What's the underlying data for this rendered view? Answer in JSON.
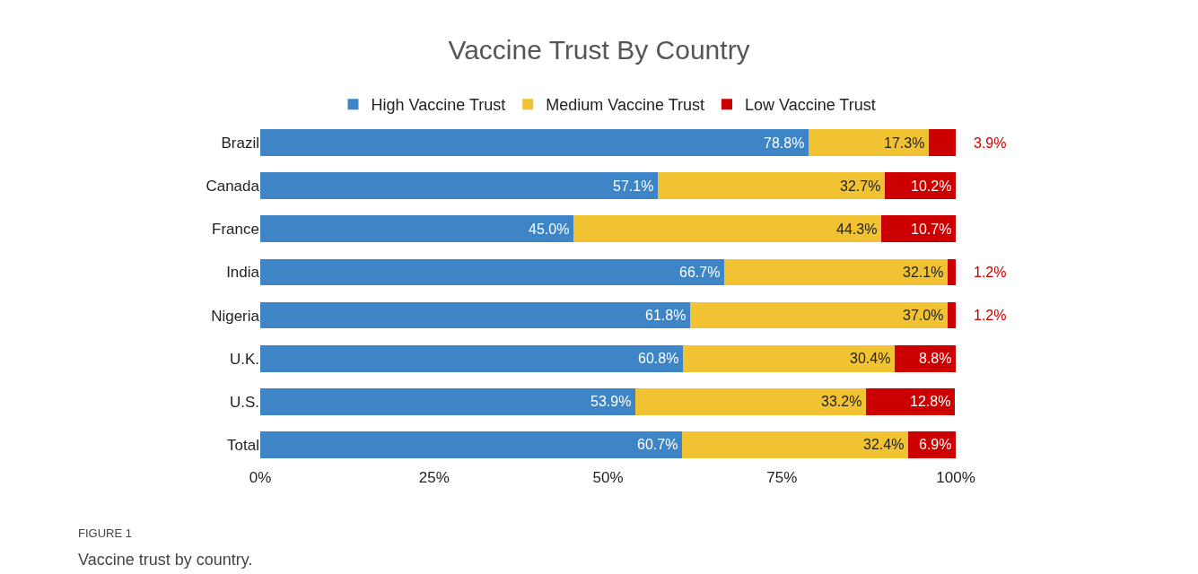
{
  "chart_data": {
    "type": "bar",
    "orientation": "horizontal",
    "stacked": true,
    "title": "Vaccine Trust By Country",
    "categories": [
      "Brazil",
      "Canada",
      "France",
      "India",
      "Nigeria",
      "U.K.",
      "U.S.",
      "Total"
    ],
    "series": [
      {
        "name": "High Vaccine Trust",
        "color": "#3d85c6",
        "values": [
          78.8,
          57.1,
          45.0,
          66.7,
          61.8,
          60.8,
          53.9,
          60.7
        ],
        "value_labels": [
          "78.8%",
          "57.1%",
          "45.0%",
          "66.7%",
          "61.8%",
          "60.8%",
          "53.9%",
          "60.7%"
        ]
      },
      {
        "name": "Medium Vaccine Trust",
        "color": "#f1c232",
        "values": [
          17.3,
          32.7,
          44.3,
          32.1,
          37.0,
          30.4,
          33.2,
          32.4
        ],
        "value_labels": [
          "17.3%",
          "32.7%",
          "44.3%",
          "32.1%",
          "37.0%",
          "30.4%",
          "33.2%",
          "32.4%"
        ]
      },
      {
        "name": "Low Vaccine Trust",
        "color": "#cc0000",
        "values": [
          3.9,
          10.2,
          10.7,
          1.2,
          1.2,
          8.8,
          12.8,
          6.9
        ],
        "value_labels": [
          "3.9%",
          "10.2%",
          "10.7%",
          "1.2%",
          "1.2%",
          "8.8%",
          "12.8%",
          "6.9%"
        ]
      }
    ],
    "xlim": [
      0,
      100
    ],
    "xticks": [
      {
        "value": 0,
        "label": "0%"
      },
      {
        "value": 25,
        "label": "25%"
      },
      {
        "value": 50,
        "label": "50%"
      },
      {
        "value": 75,
        "label": "75%"
      },
      {
        "value": 100,
        "label": "100%"
      }
    ],
    "legend": "top",
    "annotations": [
      "FIGURE 1",
      "Vaccine trust by country."
    ]
  }
}
